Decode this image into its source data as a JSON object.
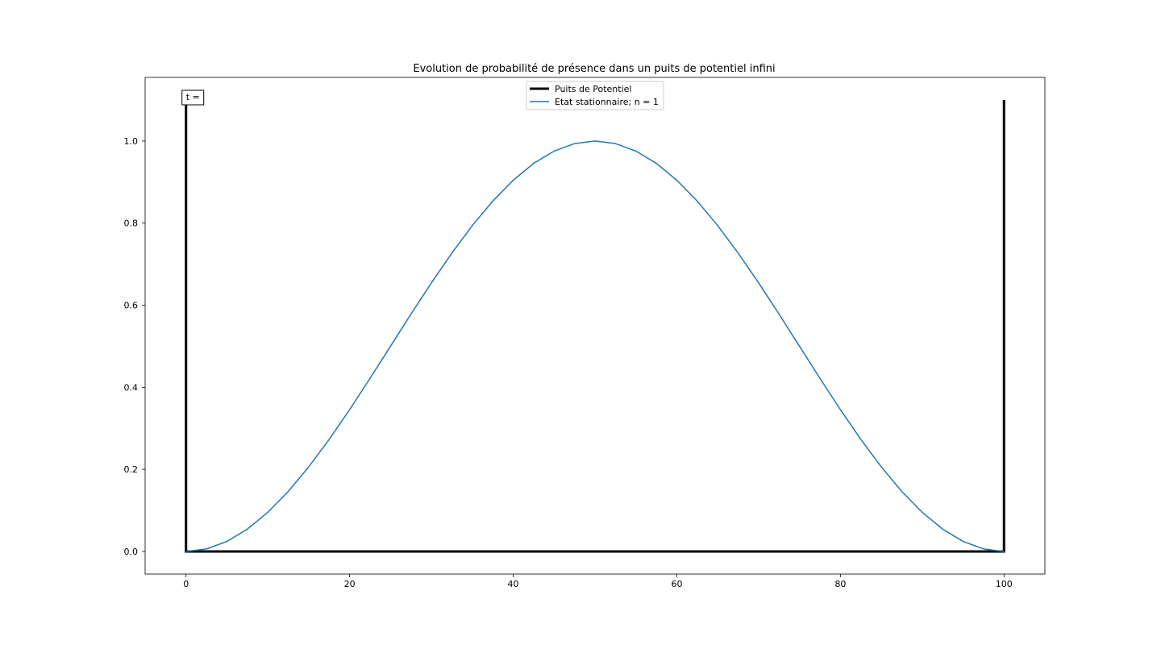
{
  "chart_data": {
    "type": "line",
    "title": "Evolution de probabilité de présence dans un puits de potentiel infini",
    "xlabel": "",
    "ylabel": "",
    "xlim": [
      -5,
      105
    ],
    "ylim": [
      -0.055,
      1.155
    ],
    "xticks": [
      0,
      20,
      40,
      60,
      80,
      100
    ],
    "yticks": [
      0.0,
      0.2,
      0.4,
      0.6,
      0.8,
      1.0
    ],
    "xtick_labels": [
      "0",
      "20",
      "40",
      "60",
      "80",
      "100"
    ],
    "ytick_labels": [
      "0.0",
      "0.2",
      "0.4",
      "0.6",
      "0.8",
      "1.0"
    ],
    "grid": false,
    "legend_position": "top-center",
    "annotation": {
      "text": "t =",
      "x": 0,
      "y": 1.1
    },
    "series": [
      {
        "name": "Puits de Potentiel",
        "color": "#000000",
        "style": "thick",
        "x": [
          0,
          0,
          100,
          100
        ],
        "y": [
          1.1,
          0,
          0,
          1.1
        ]
      },
      {
        "name": "Etat stationnaire; n = 1",
        "color": "#1f77b4",
        "style": "thin",
        "x": [
          0,
          2.5,
          5,
          7.5,
          10,
          12.5,
          15,
          17.5,
          20,
          22.5,
          25,
          27.5,
          30,
          32.5,
          35,
          37.5,
          40,
          42.5,
          45,
          47.5,
          50,
          52.5,
          55,
          57.5,
          60,
          62.5,
          65,
          67.5,
          70,
          72.5,
          75,
          77.5,
          80,
          82.5,
          85,
          87.5,
          90,
          92.5,
          95,
          97.5,
          100
        ],
        "y": [
          0.0,
          0.0062,
          0.0245,
          0.0545,
          0.0955,
          0.1464,
          0.2061,
          0.273,
          0.3455,
          0.4218,
          0.5,
          0.5782,
          0.6545,
          0.727,
          0.7939,
          0.8536,
          0.9045,
          0.9455,
          0.9755,
          0.9938,
          1.0,
          0.9938,
          0.9755,
          0.9455,
          0.9045,
          0.8536,
          0.7939,
          0.727,
          0.6545,
          0.5782,
          0.5,
          0.4218,
          0.3455,
          0.273,
          0.2061,
          0.1464,
          0.0955,
          0.0545,
          0.0245,
          0.0062,
          0.0
        ]
      }
    ]
  }
}
